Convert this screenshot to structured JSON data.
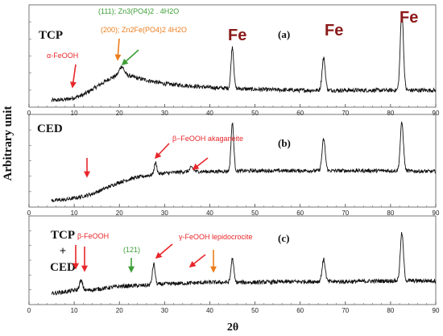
{
  "chart_data": {
    "type": "line",
    "ylabel": "Arbitrary unit",
    "xlabel": "2θ",
    "panels": [
      {
        "id": "a",
        "sample": [
          "TCP"
        ],
        "panel_label": "(a)",
        "xlim": [
          0,
          90
        ],
        "xticks": [
          0,
          10,
          20,
          30,
          40,
          50,
          60,
          70,
          80,
          90
        ],
        "ylim": [
          0,
          100
        ],
        "baseline": [
          [
            5,
            2
          ],
          [
            8,
            3
          ],
          [
            10,
            5
          ],
          [
            12,
            8
          ],
          [
            14,
            14
          ],
          [
            16,
            20
          ],
          [
            18,
            26
          ],
          [
            19.5,
            29
          ],
          [
            20.5,
            31
          ],
          [
            22,
            29
          ],
          [
            24,
            26
          ],
          [
            27,
            23
          ],
          [
            30,
            20
          ],
          [
            35,
            18
          ],
          [
            40,
            16
          ],
          [
            45,
            15
          ],
          [
            50,
            14
          ],
          [
            60,
            13
          ],
          [
            70,
            13
          ],
          [
            80,
            13
          ],
          [
            90,
            13
          ]
        ],
        "peaks": [
          [
            20.5,
            8,
            0.5
          ],
          [
            45,
            45,
            0.3
          ],
          [
            65.2,
            35,
            0.35
          ],
          [
            82.5,
            85,
            0.35
          ]
        ],
        "noise": 2.2,
        "annotations": [
          {
            "text": "α-FeOOH",
            "color": "#e8262a",
            "x": 10,
            "arrow_color": "#e8262a"
          },
          {
            "text": "(200); Zn2Fe(PO4)2 4H2O",
            "color": "#ec7d1c",
            "x": 19,
            "arrow_color": "#ec7d1c"
          },
          {
            "text": "(111); Zn3(PO4)2 . 4H2O",
            "color": "#3c9e36",
            "x": 21,
            "arrow_color": "#3c9e36"
          },
          {
            "text": "Fe",
            "color": "#8b1a1a",
            "x": 45
          },
          {
            "text": "Fe",
            "color": "#8b1a1a",
            "x": 65
          },
          {
            "text": "Fe",
            "color": "#8b1a1a",
            "x": 82.5
          }
        ]
      },
      {
        "id": "b",
        "sample": [
          "CED"
        ],
        "panel_label": "(b)",
        "xlim": [
          0,
          90
        ],
        "xticks": [
          0,
          10,
          20,
          30,
          40,
          50,
          60,
          70,
          80,
          90
        ],
        "ylim": [
          0,
          100
        ],
        "baseline": [
          [
            5,
            2
          ],
          [
            8,
            3
          ],
          [
            11,
            6
          ],
          [
            14,
            10
          ],
          [
            17,
            17
          ],
          [
            20,
            24
          ],
          [
            23,
            29
          ],
          [
            26,
            32
          ],
          [
            30,
            35
          ],
          [
            35,
            37
          ],
          [
            40,
            37
          ],
          [
            50,
            38
          ],
          [
            60,
            38
          ],
          [
            70,
            38
          ],
          [
            80,
            38
          ],
          [
            90,
            37
          ]
        ],
        "peaks": [
          [
            28,
            14,
            0.3
          ],
          [
            36,
            5,
            0.4
          ],
          [
            45,
            58,
            0.3
          ],
          [
            65.2,
            38,
            0.35
          ],
          [
            82.5,
            58,
            0.35
          ]
        ],
        "noise": 2.2,
        "annotations": [
          {
            "text": "β−FeOOH akaganeite",
            "color": "#e8262a",
            "x": 28,
            "arrow_color": "#e8262a"
          },
          {
            "x": 13.5,
            "arrow_color": "#e8262a"
          },
          {
            "x": 36.5,
            "arrow_color": "#e8262a"
          }
        ]
      },
      {
        "id": "c",
        "sample": [
          "TCP",
          "+",
          "CED"
        ],
        "panel_label": "(c)",
        "xlim": [
          0,
          90
        ],
        "xticks": [
          0,
          10,
          20,
          30,
          40,
          50,
          60,
          70,
          80,
          90
        ],
        "ylim": [
          0,
          100
        ],
        "baseline": [
          [
            5,
            8
          ],
          [
            8,
            10
          ],
          [
            10,
            12
          ],
          [
            13,
            12
          ],
          [
            16,
            14
          ],
          [
            20,
            17
          ],
          [
            25,
            18
          ],
          [
            30,
            20
          ],
          [
            35,
            21
          ],
          [
            40,
            22
          ],
          [
            50,
            22
          ],
          [
            60,
            23
          ],
          [
            70,
            23
          ],
          [
            80,
            24
          ],
          [
            90,
            24
          ]
        ],
        "peaks": [
          [
            11.5,
            12,
            0.35
          ],
          [
            27.6,
            26,
            0.3
          ],
          [
            45,
            30,
            0.3
          ],
          [
            65.2,
            28,
            0.35
          ],
          [
            82.5,
            60,
            0.35
          ]
        ],
        "noise": 2.6,
        "annotations": [
          {
            "text": "β-FeOOH",
            "color": "#e8262a",
            "x": 10.5,
            "arrow_color": "#e8262a"
          },
          {
            "x": 13,
            "arrow_color": "#e8262a"
          },
          {
            "text": "(121)",
            "color": "#3c9e36",
            "x": 23,
            "arrow_color": "#3c9e36"
          },
          {
            "text": "γ-FeOOH lepidocrocite",
            "color": "#e8262a",
            "x": 27.5,
            "arrow_color": "#e8262a"
          },
          {
            "x": 36.5,
            "arrow_color": "#e8262a"
          },
          {
            "x": 41,
            "arrow_color": "#ec7d1c"
          }
        ]
      }
    ],
    "grid": false,
    "line_color": "#111111"
  }
}
